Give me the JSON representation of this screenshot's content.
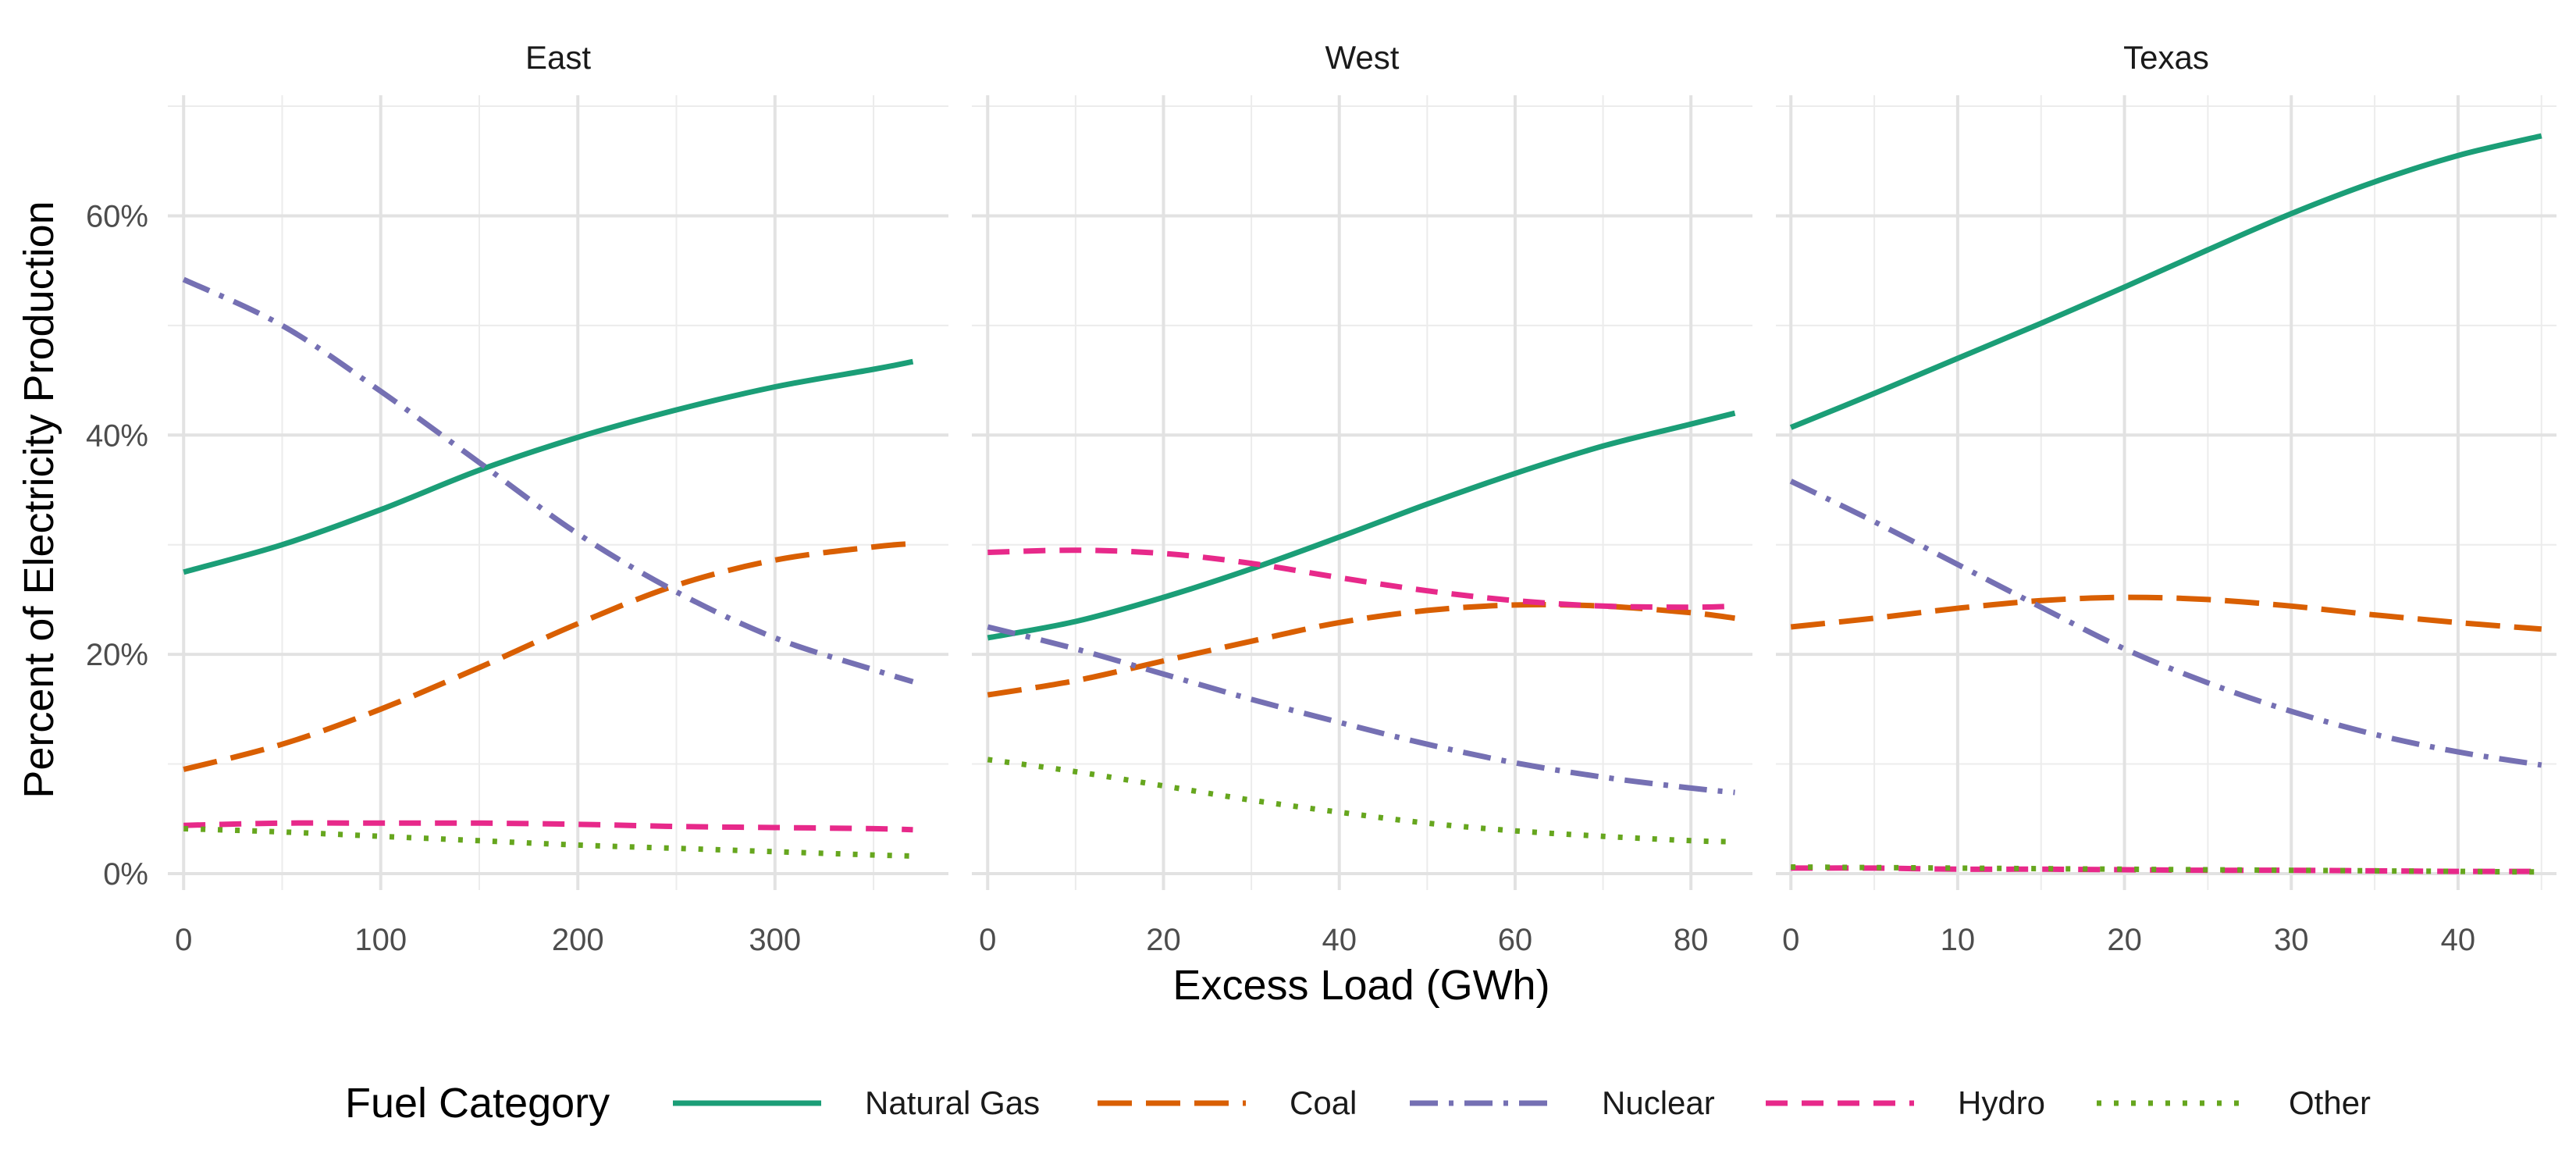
{
  "chart_data": {
    "type": "line",
    "ylabel": "Percent of Electricity Production",
    "xlabel": "Excess Load (GWh)",
    "y_ticks": [
      "0%",
      "20%",
      "40%",
      "60%"
    ],
    "y_tick_values": [
      0,
      20,
      40,
      60
    ],
    "ylim": [
      -1.5,
      71
    ],
    "grid": true,
    "legend_position": "bottom",
    "legend": {
      "title": "Fuel Category",
      "entries": [
        "Natural Gas",
        "Coal",
        "Nuclear",
        "Hydro",
        "Other"
      ]
    },
    "series_styles": [
      {
        "name": "Natural Gas",
        "color": "#1B9E77",
        "dash": "solid"
      },
      {
        "name": "Coal",
        "color": "#D95F02",
        "dash": "longdash"
      },
      {
        "name": "Nuclear",
        "color": "#7570B3",
        "dash": "dotdash"
      },
      {
        "name": "Hydro",
        "color": "#E7298A",
        "dash": "dashed"
      },
      {
        "name": "Other",
        "color": "#66A61E",
        "dash": "dotted"
      }
    ],
    "panels": [
      {
        "title": "East",
        "xlim": [
          -8,
          388
        ],
        "x_ticks": [
          0,
          100,
          200,
          300
        ],
        "x_tick_labels": [
          "0",
          "100",
          "200",
          "300"
        ],
        "x": [
          0,
          50,
          100,
          150,
          200,
          250,
          300,
          350,
          370
        ],
        "series": [
          {
            "name": "Natural Gas",
            "values": [
              27.5,
              30.0,
              33.2,
              36.8,
              39.8,
              42.3,
              44.4,
              46.0,
              46.7
            ]
          },
          {
            "name": "Coal",
            "values": [
              9.5,
              11.8,
              15.0,
              18.8,
              22.8,
              26.3,
              28.6,
              29.8,
              30.1
            ]
          },
          {
            "name": "Nuclear",
            "values": [
              54.2,
              50.0,
              44.0,
              37.5,
              31.0,
              25.7,
              21.5,
              18.6,
              17.5
            ]
          },
          {
            "name": "Hydro",
            "values": [
              4.4,
              4.6,
              4.6,
              4.6,
              4.5,
              4.3,
              4.2,
              4.1,
              4.0
            ]
          },
          {
            "name": "Other",
            "values": [
              4.1,
              3.8,
              3.4,
              3.0,
              2.6,
              2.3,
              2.0,
              1.7,
              1.6
            ]
          }
        ]
      },
      {
        "title": "West",
        "xlim": [
          -1.8,
          87
        ],
        "x_ticks": [
          0,
          20,
          40,
          60,
          80
        ],
        "x_tick_labels": [
          "0",
          "20",
          "40",
          "60",
          "80"
        ],
        "x": [
          0,
          10,
          20,
          30,
          40,
          50,
          60,
          70,
          80,
          85
        ],
        "series": [
          {
            "name": "Natural Gas",
            "values": [
              21.5,
              23.0,
              25.2,
              27.8,
              30.7,
              33.7,
              36.5,
              39.0,
              41.0,
              42.0
            ]
          },
          {
            "name": "Coal",
            "values": [
              16.3,
              17.6,
              19.4,
              21.2,
              22.9,
              24.0,
              24.5,
              24.4,
              23.8,
              23.3
            ]
          },
          {
            "name": "Nuclear",
            "values": [
              22.5,
              20.5,
              18.2,
              15.9,
              13.8,
              11.8,
              10.1,
              8.8,
              7.8,
              7.4
            ]
          },
          {
            "name": "Hydro",
            "values": [
              29.3,
              29.5,
              29.2,
              28.3,
              27.0,
              25.8,
              24.9,
              24.4,
              24.3,
              24.4
            ]
          },
          {
            "name": "Other",
            "values": [
              10.4,
              9.3,
              8.0,
              6.7,
              5.6,
              4.6,
              3.9,
              3.4,
              3.0,
              2.9
            ]
          }
        ]
      },
      {
        "title": "Texas",
        "xlim": [
          -0.9,
          45.9
        ],
        "x_ticks": [
          0,
          10,
          20,
          30,
          40
        ],
        "x_tick_labels": [
          "0",
          "10",
          "20",
          "30",
          "40"
        ],
        "x": [
          0,
          5,
          10,
          15,
          20,
          25,
          30,
          35,
          40,
          45
        ],
        "series": [
          {
            "name": "Natural Gas",
            "values": [
              40.7,
              43.8,
              47.0,
              50.2,
              53.5,
              56.9,
              60.2,
              63.1,
              65.5,
              67.3
            ]
          },
          {
            "name": "Coal",
            "values": [
              22.5,
              23.3,
              24.2,
              24.9,
              25.2,
              25.0,
              24.4,
              23.6,
              22.9,
              22.3
            ]
          },
          {
            "name": "Nuclear",
            "values": [
              35.8,
              32.1,
              28.2,
              24.3,
              20.5,
              17.4,
              14.8,
              12.7,
              11.1,
              9.9
            ]
          },
          {
            "name": "Hydro",
            "values": [
              0.5,
              0.5,
              0.4,
              0.4,
              0.35,
              0.3,
              0.3,
              0.25,
              0.2,
              0.2
            ]
          },
          {
            "name": "Other",
            "values": [
              0.6,
              0.55,
              0.5,
              0.45,
              0.4,
              0.35,
              0.3,
              0.25,
              0.2,
              0.15
            ]
          }
        ]
      }
    ]
  }
}
